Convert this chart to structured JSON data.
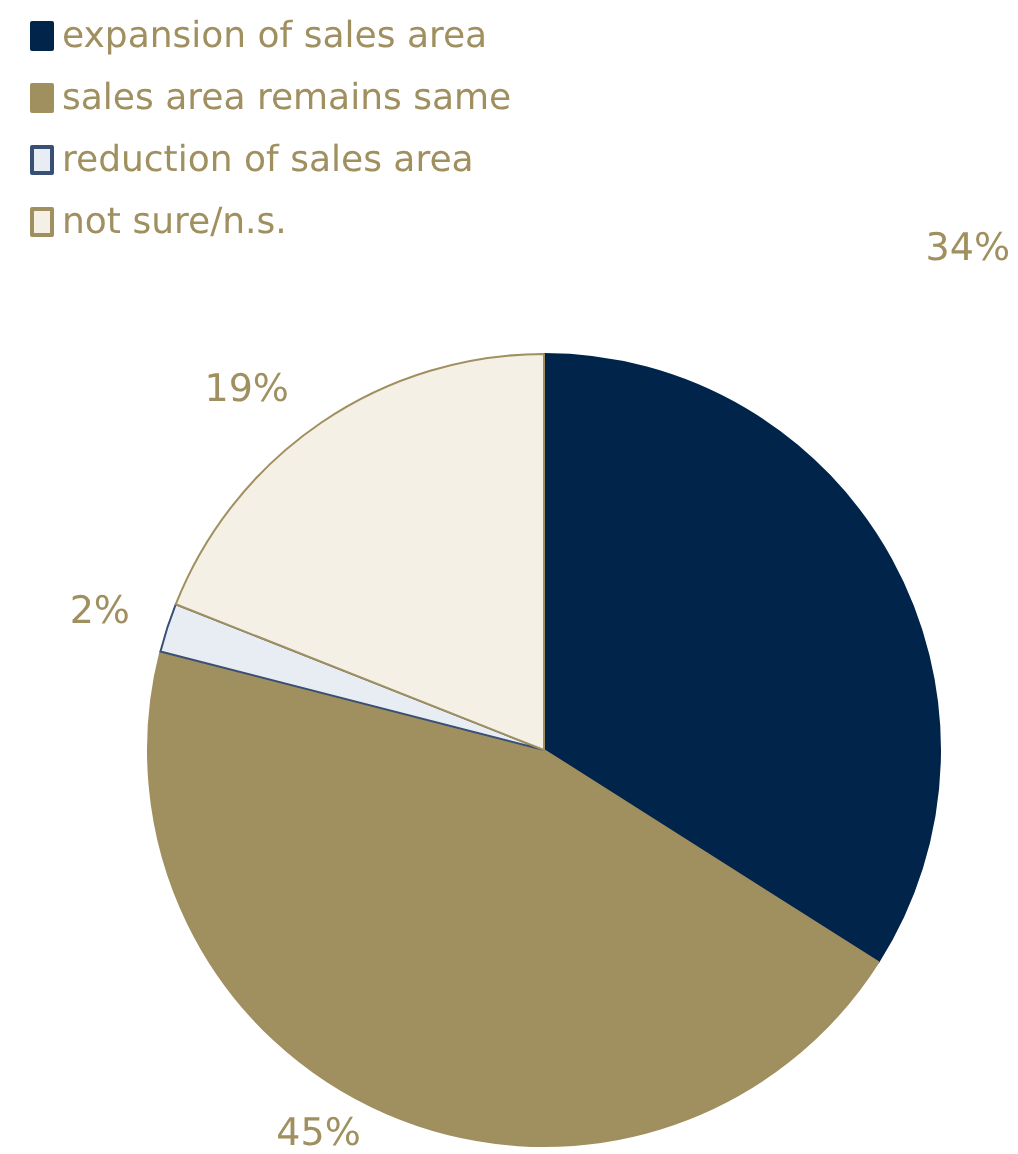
{
  "chart_data": {
    "type": "pie",
    "categories": [
      "expansion of sales area",
      "sales area remains same",
      "reduction of sales area",
      "not sure/n.s."
    ],
    "values": [
      34,
      45,
      2,
      19
    ],
    "colors": [
      "#00244a",
      "#a08f5f",
      "#e8ecf3",
      "#f4f0e6"
    ],
    "value_labels": [
      "34%",
      "45%",
      "2%",
      "19%"
    ],
    "legend": "top left"
  }
}
